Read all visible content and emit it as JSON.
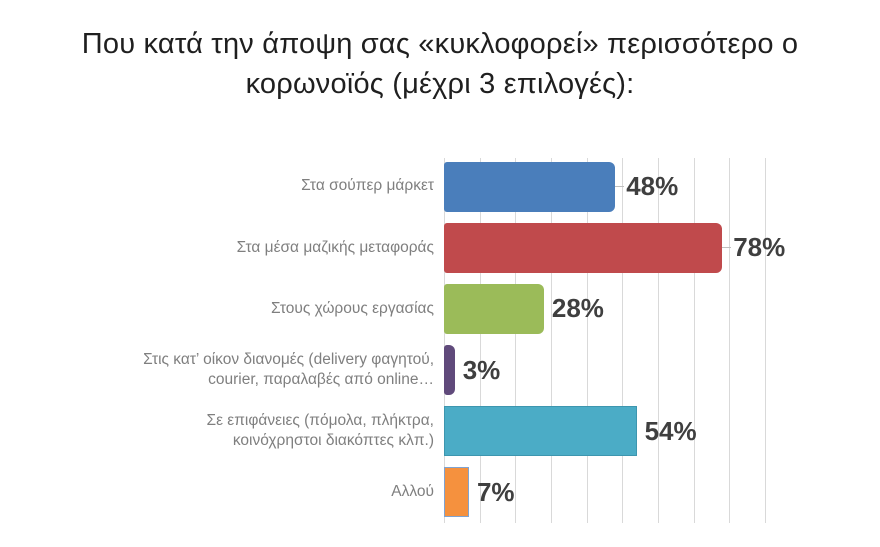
{
  "page": {
    "background": "#FFFFFF"
  },
  "chart_data": {
    "type": "bar",
    "orientation": "horizontal",
    "title": "Που κατά την άποψη σας «κυκλοφορεί» περισσότερο ο κορωνοϊός (μέχρι 3 επιλογές):",
    "title_lines": [
      "Που κατά την άποψη σας «κυκλοφορεί» περισσότερο ο",
      "κορωνοϊός (μέχρι 3 επιλογές):"
    ],
    "title_color": "#1F1F1F",
    "categories": [
      [
        "Στα σούπερ μάρκετ"
      ],
      [
        "Στα μέσα μαζικής μεταφοράς"
      ],
      [
        "Στους χώρους εργασίας"
      ],
      [
        "Στις κατ’ οίκον διανομές (delivery φαγητού,",
        "courier, παραλαβές από online…"
      ],
      [
        "Σε επιφάνειες (πόμολα, πλήκτρα,",
        "κοινόχρηστοι διακόπτες κλπ.)"
      ],
      [
        "Αλλού"
      ]
    ],
    "categories_full": [
      "Στα σούπερ μάρκετ",
      "Στα μέσα μαζικής μεταφοράς",
      "Στους χώρους εργασίας",
      "Στις κατ’ οίκον διανομές (delivery φαγητού, courier, παραλαβές από online…",
      "Σε επιφάνειες (πόμολα, πλήκτρα, κοινόχρηστοι διακόπτες κλπ.)",
      "Αλλού"
    ],
    "values": [
      48,
      78,
      28,
      3,
      54,
      7
    ],
    "display_values": [
      "48%",
      "78%",
      "28%",
      "3%",
      "54%",
      "7%"
    ],
    "bar_colors": [
      "#4A7EBB",
      "#C04A4C",
      "#9BBB59",
      "#604A7B",
      "#4BACC6",
      "#F5913E"
    ],
    "bar_borders": [
      null,
      null,
      null,
      null,
      "#3D96AF",
      "#7FA3D1"
    ],
    "bar_corner_style": [
      "rounded",
      "rounded",
      "rounded",
      "rounded",
      "square",
      "square"
    ],
    "value_leader_line": [
      true,
      true,
      false,
      false,
      false,
      false
    ],
    "xlabel": "",
    "ylabel": "",
    "xlim": [
      0,
      90
    ],
    "gridline_interval": 10,
    "grid": "vertical",
    "gridline_color": "#D9D9D9",
    "legend": false,
    "category_label_color": "#7F7F7F",
    "value_label_color": "#3F3F3F"
  }
}
